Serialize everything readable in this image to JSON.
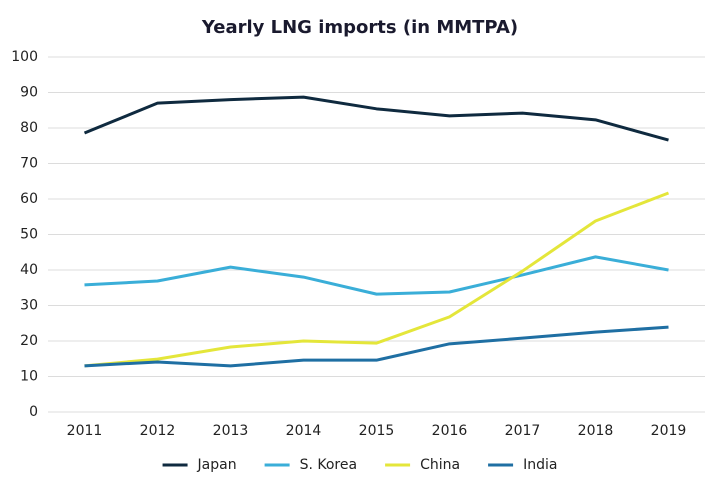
{
  "chart_data": {
    "type": "line",
    "title": "Yearly LNG imports (in MMTPA)",
    "categories": [
      "2011",
      "2012",
      "2013",
      "2014",
      "2015",
      "2016",
      "2017",
      "2018",
      "2019"
    ],
    "series": [
      {
        "name": "Japan",
        "color": "#0f2a3f",
        "values": [
          78.6,
          87,
          88,
          88.7,
          85.4,
          83.4,
          84.2,
          82.3,
          76.6
        ]
      },
      {
        "name": "S. Korea",
        "color": "#3aaed8",
        "values": [
          35.8,
          36.9,
          40.8,
          38,
          33.2,
          33.8,
          38.6,
          43.7,
          40
        ]
      },
      {
        "name": "China",
        "color": "#e4e63a",
        "values": [
          13,
          14.9,
          18.3,
          20,
          19.4,
          26.8,
          39.7,
          53.8,
          61.7
        ]
      },
      {
        "name": "India",
        "color": "#1f6fa3",
        "values": [
          13,
          14.1,
          13,
          14.6,
          14.6,
          19.2,
          20.8,
          22.5,
          23.9
        ]
      }
    ],
    "ylim": [
      0,
      100
    ],
    "yticks": [
      0,
      10,
      20,
      30,
      40,
      50,
      60,
      70,
      80,
      90,
      100
    ],
    "grid": true,
    "legend": "bottom"
  }
}
